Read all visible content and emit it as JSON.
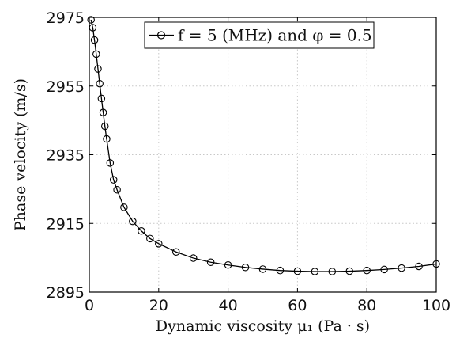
{
  "chart_data": {
    "type": "line",
    "xlabel": "Dynamic viscosity μ₁ (Pa · s)",
    "ylabel": "Phase velocity (m/s)",
    "xlim": [
      0,
      100
    ],
    "ylim": [
      2895,
      2975
    ],
    "xticks": [
      0,
      20,
      40,
      60,
      80,
      100
    ],
    "yticks": [
      2895,
      2915,
      2935,
      2955,
      2975
    ],
    "grid": true,
    "legend_position": "top-right",
    "series": [
      {
        "name": "f = 5 (MHz) and φ = 0.5",
        "marker": "circle",
        "color": "#000000",
        "x": [
          0.5,
          1,
          1.5,
          2,
          2.5,
          3,
          3.5,
          4,
          4.5,
          5,
          6,
          7,
          8,
          10,
          12.5,
          15,
          17.5,
          20,
          25,
          30,
          35,
          40,
          45,
          50,
          55,
          60,
          65,
          70,
          75,
          80,
          85,
          90,
          95,
          100
        ],
        "y": [
          2974.3,
          2972.0,
          2968.4,
          2964.3,
          2960.0,
          2955.7,
          2951.4,
          2947.3,
          2943.3,
          2939.6,
          2932.6,
          2927.7,
          2924.8,
          2919.7,
          2915.6,
          2912.8,
          2910.6,
          2909.1,
          2906.7,
          2904.9,
          2903.7,
          2902.9,
          2902.2,
          2901.7,
          2901.3,
          2901.1,
          2901.0,
          2901.0,
          2901.1,
          2901.3,
          2901.6,
          2902.0,
          2902.5,
          2903.2
        ]
      }
    ]
  }
}
